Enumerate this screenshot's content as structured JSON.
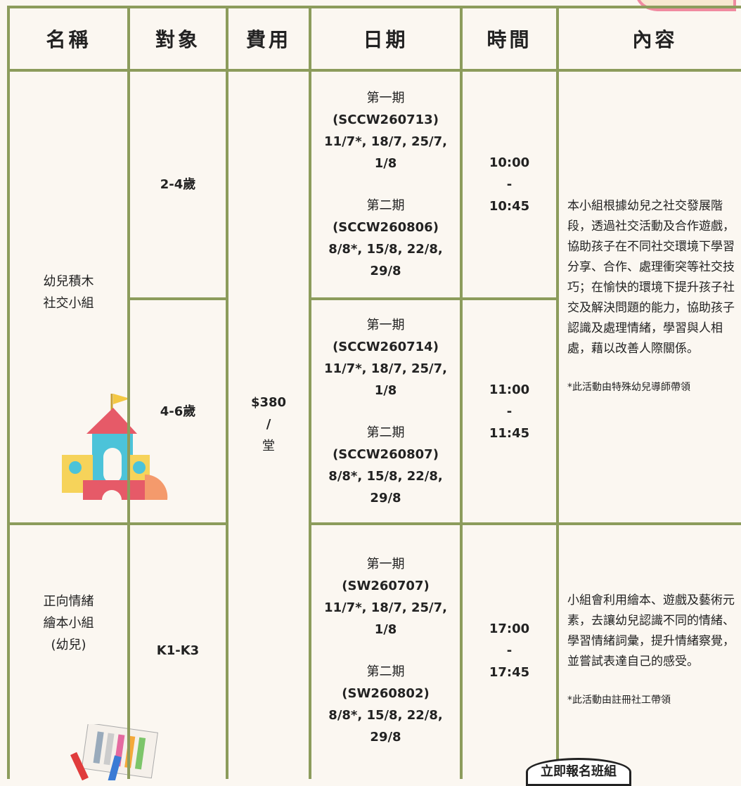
{
  "table": {
    "headers": [
      "名稱",
      "對象",
      "費用",
      "日期",
      "時間",
      "內容"
    ],
    "fee": [
      "$380",
      "/",
      "堂"
    ],
    "groups": [
      {
        "name": [
          "幼兒積木",
          "社交小組"
        ],
        "content": "本小組根據幼兒之社交發展階段，透過社交活動及合作遊戲，協助孩子在不同社交環境下學習分享、合作、處理衝突等社交技巧；在愉快的環境下提升孩子社交及解決問題的能力，協助孩子認識及處理情緒，學習與人相處，藉以改善人際關係。",
        "note": "*此活動由特殊幼兒導師帶領",
        "sessions": [
          {
            "target": "2-4歲",
            "time": [
              "10:00",
              "-",
              "10:45"
            ],
            "periods": [
              {
                "label": "第一期",
                "code": "(SCCW260713)",
                "dates": "11/7*, 18/7, 25/7, 1/8"
              },
              {
                "label": "第二期",
                "code": "(SCCW260806)",
                "dates": "8/8*, 15/8, 22/8, 29/8"
              }
            ]
          },
          {
            "target": "4-6歲",
            "time": [
              "11:00",
              "-",
              "11:45"
            ],
            "periods": [
              {
                "label": "第一期",
                "code": "(SCCW260714)",
                "dates": "11/7*, 18/7, 25/7, 1/8"
              },
              {
                "label": "第二期",
                "code": "(SCCW260807)",
                "dates": "8/8*, 15/8, 22/8, 29/8"
              }
            ]
          }
        ]
      },
      {
        "name": [
          "正向情緒",
          "繪本小組",
          "(幼兒)"
        ],
        "content": "小組會利用繪本、遊戲及藝術元素，去讓幼兒認識不同的情緒、學習情緒詞彙，提升情緒察覺，並嘗試表達自己的感受。",
        "note": "*此活動由註冊社工帶領",
        "sessions": [
          {
            "target": "K1-K3",
            "time": [
              "17:00",
              "-",
              "17:45"
            ],
            "periods": [
              {
                "label": "第一期",
                "code": "(SW260707)",
                "dates": "11/7*, 18/7, 25/7, 1/8"
              },
              {
                "label": "第二期",
                "code": "(SW260802)",
                "dates": "8/8*, 15/8, 22/8, 29/8"
              }
            ]
          }
        ]
      }
    ],
    "badge": "立即報名班組"
  }
}
